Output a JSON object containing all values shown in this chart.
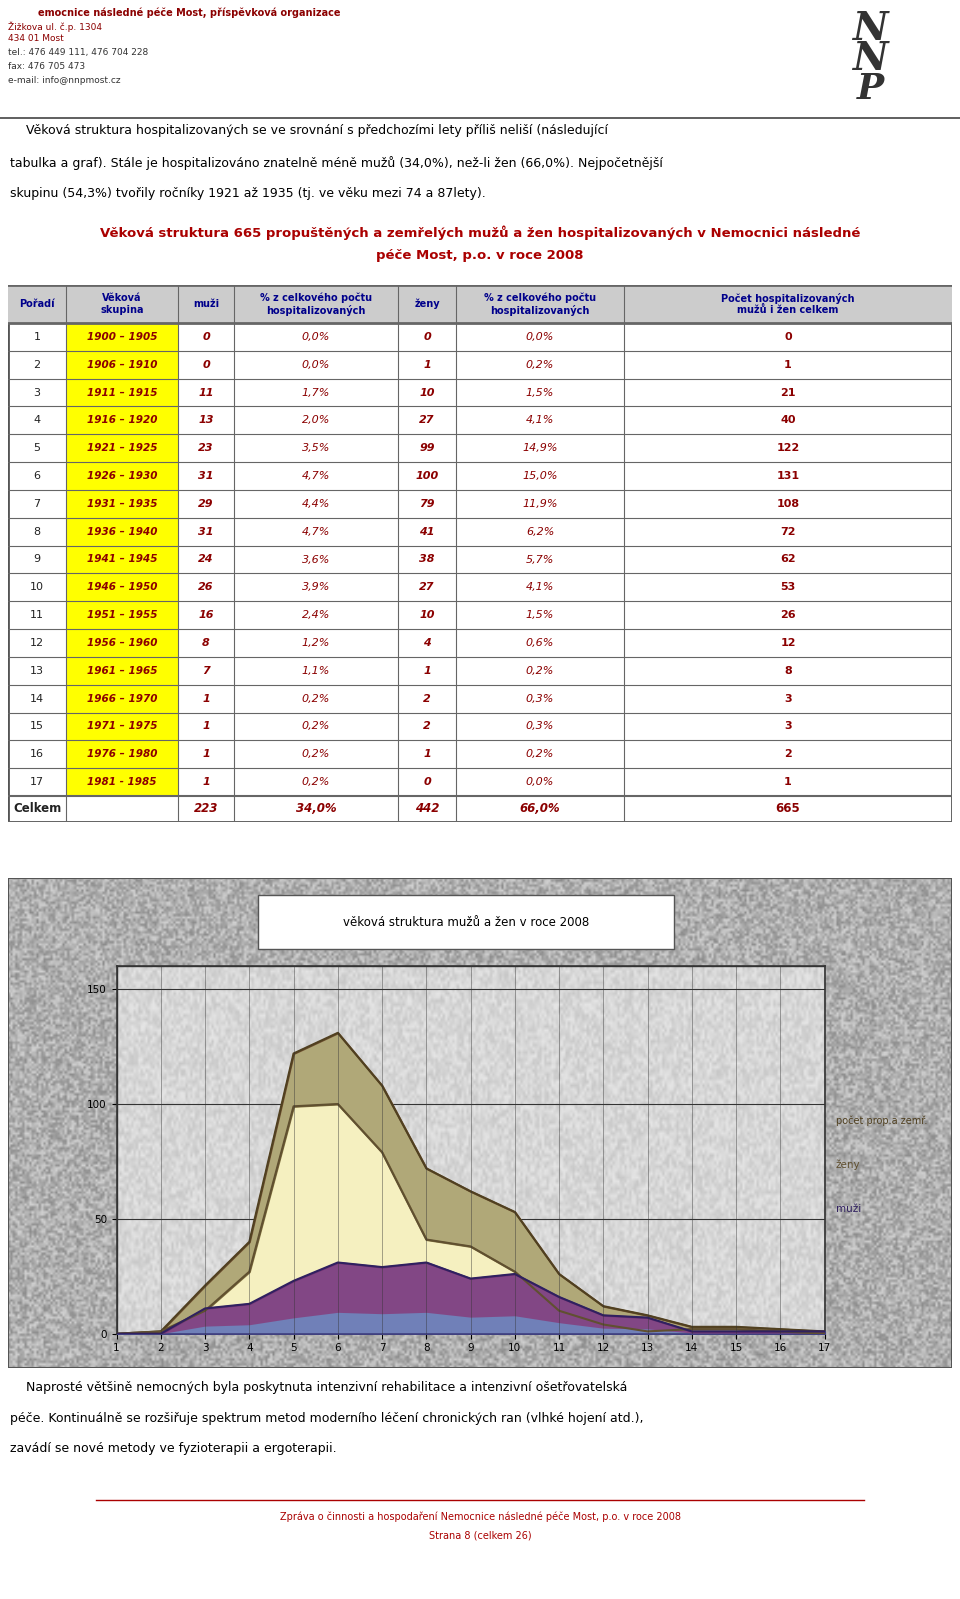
{
  "col_headers": [
    "Pořadí",
    "Věková\nskupina",
    "muži",
    "% z celkového počtu\nhospitalizovaných",
    "ženy",
    "% z celkového počtu\nhospitalizovaných",
    "Počet hospitalizovaných\nmužů i žen celkem"
  ],
  "rows": [
    [
      1,
      "1900 – 1905",
      0,
      "0,0%",
      0,
      "0,0%",
      0
    ],
    [
      2,
      "1906 – 1910",
      0,
      "0,0%",
      1,
      "0,2%",
      1
    ],
    [
      3,
      "1911 – 1915",
      11,
      "1,7%",
      10,
      "1,5%",
      21
    ],
    [
      4,
      "1916 – 1920",
      13,
      "2,0%",
      27,
      "4,1%",
      40
    ],
    [
      5,
      "1921 – 1925",
      23,
      "3,5%",
      99,
      "14,9%",
      122
    ],
    [
      6,
      "1926 – 1930",
      31,
      "4,7%",
      100,
      "15,0%",
      131
    ],
    [
      7,
      "1931 – 1935",
      29,
      "4,4%",
      79,
      "11,9%",
      108
    ],
    [
      8,
      "1936 – 1940",
      31,
      "4,7%",
      41,
      "6,2%",
      72
    ],
    [
      9,
      "1941 – 1945",
      24,
      "3,6%",
      38,
      "5,7%",
      62
    ],
    [
      10,
      "1946 – 1950",
      26,
      "3,9%",
      27,
      "4,1%",
      53
    ],
    [
      11,
      "1951 – 1955",
      16,
      "2,4%",
      10,
      "1,5%",
      26
    ],
    [
      12,
      "1956 – 1960",
      8,
      "1,2%",
      4,
      "0,6%",
      12
    ],
    [
      13,
      "1961 – 1965",
      7,
      "1,1%",
      1,
      "0,2%",
      8
    ],
    [
      14,
      "1966 – 1970",
      1,
      "0,2%",
      2,
      "0,3%",
      3
    ],
    [
      15,
      "1971 – 1975",
      1,
      "0,2%",
      2,
      "0,3%",
      3
    ],
    [
      16,
      "1976 – 1980",
      1,
      "0,2%",
      1,
      "0,2%",
      2
    ],
    [
      17,
      "1981 - 1985",
      1,
      "0,2%",
      0,
      "0,0%",
      1
    ]
  ],
  "total_row": [
    "Celkem",
    "",
    223,
    "34,0%",
    442,
    "66,0%",
    665
  ],
  "chart_title": "věková struktura mužů a žen v roce 2008",
  "muzi_values": [
    0,
    0,
    11,
    13,
    23,
    31,
    29,
    31,
    24,
    26,
    16,
    8,
    7,
    1,
    1,
    1,
    1
  ],
  "zeny_values": [
    0,
    1,
    10,
    27,
    99,
    100,
    79,
    41,
    38,
    27,
    10,
    4,
    1,
    2,
    2,
    1,
    0
  ],
  "celkem_values": [
    0,
    1,
    21,
    40,
    122,
    131,
    108,
    72,
    62,
    53,
    26,
    12,
    8,
    3,
    3,
    2,
    1
  ],
  "footer_line1": "Zpráva o činnosti a hospodaření Nemocnice následné péče Most, p.o. v roce 2008",
  "footer_line2": "Strana 8 (celkem 26)",
  "org_name": "emocnice následné péče Most, příspěvková organizace",
  "addr1": "Žižkova ul. č.p. 1304",
  "addr2": "434 01 Most",
  "phone": "tel.: 476 449 111, 476 704 228",
  "fax": "fax: 476 705 473",
  "email": "e-mail: info@nnpmost.cz",
  "intro_lines": [
    "    Věková struktura hospitalizovaných se ve srovnání s předchozími lety příliš neliší (následující",
    "tabulka a graf). Stále je hospitalizováno znatelně méně mužů (34,0%), než-li žen (66,0%). Nejpočetnější",
    "skupinu (54,3%) tvořily ročníky 1921 až 1935 (tj. ve věku mezi 74 a 87lety)."
  ],
  "outro_lines": [
    "    Naprosté většině nemocných byla poskytnuta intenzivní rehabilitace a intenzivní ošetřovatelská",
    "péče. Kontinuálně se rozšiřuje spektrum metod moderního léčení chronických ran (vlhké hojení atd.),",
    "zavádí se nové metody ve fyzioterapii a ergoterapii."
  ],
  "table_title_line1": "Věková struktura 665 propuštěných a zemřelých mužů a žen hospitalizovaných v Nemocnici následné",
  "table_title_line2": "péče Most, p.o. v roce 2008"
}
